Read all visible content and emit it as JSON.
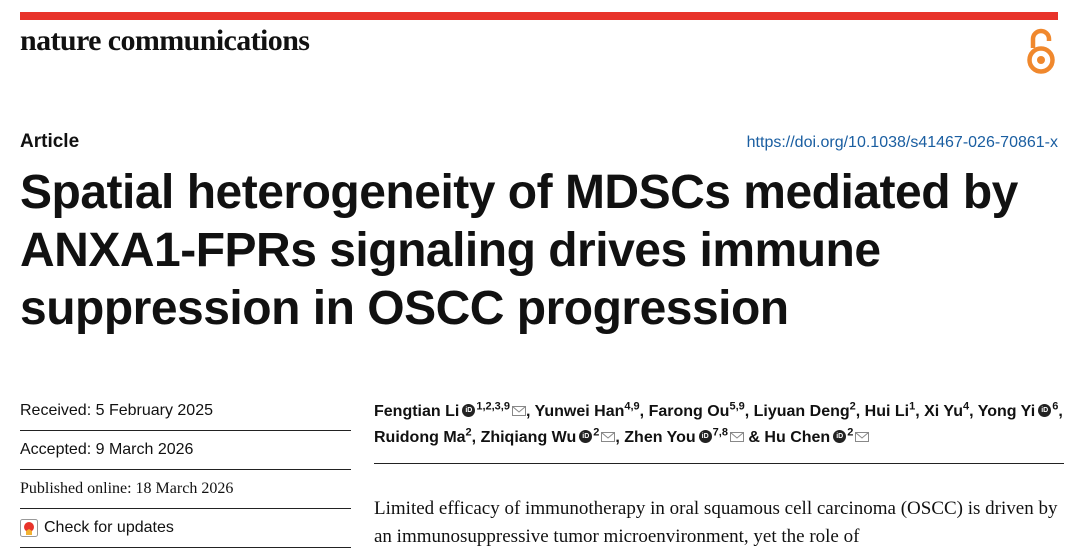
{
  "journal_name": "nature communications",
  "article_type": "Article",
  "doi_url": "https://doi.org/10.1038/s41467-026-70861-x",
  "title": "Spatial heterogeneity of MDSCs mediated by ANXA1-FPRs signaling drives immune suppression in OSCC progression",
  "dates": {
    "received": "Received: 5 February 2025",
    "accepted": "Accepted: 9 March 2026",
    "published": "Published online: 18 March 2026"
  },
  "check_updates_label": "Check for updates",
  "authors": [
    {
      "name": "Fengtian Li",
      "sup": "1,2,3,9",
      "orcid": true,
      "email": true,
      "sep": ", "
    },
    {
      "name": "Yunwei Han",
      "sup": "4,9",
      "orcid": false,
      "email": false,
      "sep": ", "
    },
    {
      "name": "Farong Ou",
      "sup": "5,9",
      "orcid": false,
      "email": false,
      "sep": ", "
    },
    {
      "name": "Liyuan Deng",
      "sup": "2",
      "orcid": false,
      "email": false,
      "sep": ", "
    },
    {
      "name": "Hui Li",
      "sup": "1",
      "orcid": false,
      "email": false,
      "sep": ", "
    },
    {
      "name": "Xi Yu",
      "sup": "4",
      "orcid": false,
      "email": false,
      "sep": ", "
    },
    {
      "name": "Yong Yi",
      "sup": "6",
      "orcid": true,
      "email": false,
      "sep": ", "
    },
    {
      "name": "Ruidong Ma",
      "sup": "2",
      "orcid": false,
      "email": false,
      "sep": ", "
    },
    {
      "name": "Zhiqiang Wu",
      "sup": "2",
      "orcid": true,
      "email": true,
      "sep": ", "
    },
    {
      "name": "Zhen You",
      "sup": "7,8",
      "orcid": true,
      "email": true,
      "sep": " & "
    },
    {
      "name": "Hu Chen",
      "sup": "2",
      "orcid": true,
      "email": true,
      "sep": ""
    }
  ],
  "abstract_text": "Limited efficacy of immunotherapy in oral squamous cell carcinoma (OSCC) is driven by an immunosuppressive tumor microenvironment, yet the role of",
  "colors": {
    "accent_bar": "#e8332a",
    "open_access": "#f0882d",
    "doi_link": "#1a5ea1"
  },
  "icons": {
    "open_access": "open-access-icon",
    "check_updates": "check-updates-icon",
    "orcid": "orcid-icon",
    "email": "email-icon"
  }
}
